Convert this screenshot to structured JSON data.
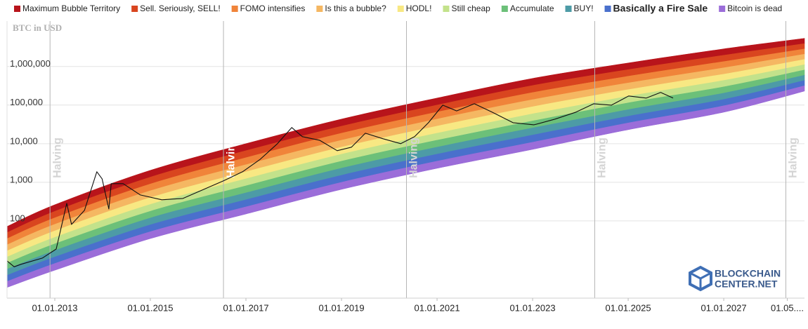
{
  "chart_data": {
    "type": "rainbow",
    "y_label": "BTC in USD",
    "log_scale": true,
    "grid": true,
    "xlim": [
      2012,
      2028.69
    ],
    "xticks": [
      {
        "value": 2013,
        "label": "01.01.2013"
      },
      {
        "value": 2015,
        "label": "01.01.2015"
      },
      {
        "value": 2017,
        "label": "01.01.2017"
      },
      {
        "value": 2019,
        "label": "01.01.2019"
      },
      {
        "value": 2021,
        "label": "01.01.2021"
      },
      {
        "value": 2023,
        "label": "01.01.2023"
      },
      {
        "value": 2025,
        "label": "01.01.2025"
      },
      {
        "value": 2027,
        "label": "01.01.2027"
      },
      {
        "value": 2028.33,
        "label": "01.05...."
      }
    ],
    "ylim": [
      1,
      15000000
    ],
    "yticks": [
      100,
      {
        "value": 1000,
        "label": "1,000"
      },
      {
        "value": 10000,
        "label": "10,000"
      },
      {
        "value": 100000,
        "label": "100,000"
      },
      {
        "value": 1000000,
        "label": "1,000,000"
      }
    ],
    "band_x": [
      2012,
      2013,
      2015,
      2017,
      2019,
      2021,
      2023,
      2025,
      2027,
      2028.69
    ],
    "series": [
      {
        "name": "Maximum Bubble Territory",
        "color": "#b8141b",
        "values": [
          71.6,
          262,
          2040,
          10000,
          43300,
          152000,
          491000,
          1230000,
          2850000,
          5330000
        ]
      },
      {
        "name": "Sell. Seriously, SELL!",
        "color": "#d9451f",
        "values": [
          49.8,
          177,
          1360,
          6580,
          28400,
          100000,
          321000,
          828000,
          1950000,
          3900000
        ]
      },
      {
        "name": "FOMO intensifies",
        "color": "#f0843a",
        "values": [
          34.6,
          120,
          904,
          4330,
          18700,
          65800,
          211000,
          557000,
          1340000,
          2840000
        ]
      },
      {
        "name": "Is this a bubble?",
        "color": "#f5b762",
        "values": [
          24.0,
          81.5,
          603,
          2850,
          12300,
          43400,
          138000,
          374000,
          920000,
          2080000
        ]
      },
      {
        "name": "HODL!",
        "color": "#f8e883",
        "values": [
          16.7,
          55.2,
          401,
          1870,
          8110,
          28500,
          90600,
          251000,
          631000,
          1520000
        ]
      },
      {
        "name": "Still cheap",
        "color": "#c3e28b",
        "values": [
          11.6,
          37.4,
          267,
          1230,
          5330,
          18700,
          59300,
          169000,
          434000,
          1110000
        ]
      },
      {
        "name": "Accumulate",
        "color": "#6cc079",
        "values": [
          8.05,
          25.4,
          178,
          811,
          3510,
          12300,
          38800,
          114000,
          297000,
          811000
        ]
      },
      {
        "name": "BUY!",
        "color": "#4d9ba6",
        "values": [
          5.6,
          17.1,
          119,
          533,
          2310,
          8110,
          25500,
          76200,
          204000,
          593000
        ]
      },
      {
        "name": "Basically a Fire Sale",
        "color": "#4a70cc",
        "bold": true,
        "values": [
          3.88,
          11.6,
          79.1,
          352,
          1520,
          5350,
          16700,
          51200,
          140000,
          433000
        ]
      },
      {
        "name": "Bitcoin is dead",
        "color": "#9b6dd9",
        "values": [
          2.7,
          7.87,
          52.6,
          231,
          1000,
          3520,
          10900,
          34400,
          95900,
          316000
        ]
      }
    ],
    "band_floor": [
      1.9,
      5.3,
      35,
      152,
      658,
      2310,
      7160,
      23100,
      65800,
      231000
    ],
    "price": {
      "color": "#111111",
      "x": [
        2012.0,
        2012.15,
        2012.29,
        2012.74,
        2013.03,
        2013.25,
        2013.35,
        2013.62,
        2013.88,
        2013.99,
        2014.13,
        2014.18,
        2014.43,
        2014.79,
        2015.24,
        2015.68,
        2016.12,
        2016.53,
        2016.93,
        2017.29,
        2017.66,
        2017.96,
        2018.18,
        2018.54,
        2018.91,
        2019.21,
        2019.5,
        2019.87,
        2020.24,
        2020.53,
        2020.82,
        2021.12,
        2021.41,
        2021.78,
        2022.15,
        2022.59,
        2023.03,
        2023.47,
        2023.91,
        2024.28,
        2024.65,
        2025.01,
        2025.38,
        2025.68,
        2025.94
      ],
      "values": [
        9.2,
        6.5,
        7.5,
        10.9,
        18.7,
        285,
        81,
        187,
        1880,
        1230,
        204,
        921,
        921,
        471,
        352,
        381,
        656,
        1090,
        1880,
        3850,
        10000,
        26200,
        15200,
        12300,
        6580,
        8110,
        18700,
        13400,
        10000,
        15200,
        35000,
        99700,
        70600,
        108000,
        65800,
        35000,
        30800,
        43300,
        65800,
        108000,
        99700,
        172000,
        152000,
        212000,
        152000
      ]
    },
    "annotations": [
      {
        "x": 2012.9,
        "label": "Halving",
        "color": "#d4d4d4"
      },
      {
        "x": 2016.53,
        "label": "Halving",
        "color": "#ffffff"
      },
      {
        "x": 2020.36,
        "label": "Halving",
        "color": "#d4d4d4"
      },
      {
        "x": 2024.3,
        "label": "Halving",
        "color": "#d4d4d4"
      },
      {
        "x": 2028.3,
        "label": "Halving",
        "color": "#d4d4d4"
      }
    ],
    "watermark": [
      "BLOCKCHAIN",
      "CENTER.NET"
    ]
  }
}
